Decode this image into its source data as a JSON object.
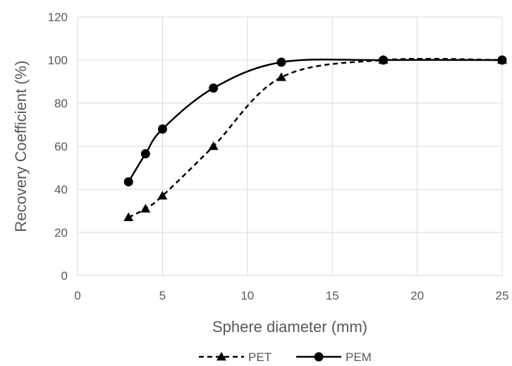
{
  "chart_data": {
    "type": "line",
    "title": "",
    "xlabel": "Sphere diameter (mm)",
    "ylabel": "Recovery Coefficient (%)",
    "xlim": [
      0,
      25
    ],
    "ylim": [
      0,
      120
    ],
    "xticks": [
      0,
      5,
      10,
      15,
      20,
      25
    ],
    "yticks": [
      0,
      20,
      40,
      60,
      80,
      100,
      120
    ],
    "grid": true,
    "legend_position": "bottom",
    "series": [
      {
        "name": "PET",
        "style": "dashed",
        "marker": "triangle",
        "color": "#000000",
        "points": [
          {
            "x": 3,
            "y": 27
          },
          {
            "x": 4,
            "y": 31
          },
          {
            "x": 5,
            "y": 37
          },
          {
            "x": 8,
            "y": 60
          },
          {
            "x": 12,
            "y": 92
          },
          {
            "x": 18,
            "y": 100
          },
          {
            "x": 25,
            "y": 100
          }
        ]
      },
      {
        "name": "PEM",
        "style": "solid",
        "marker": "circle",
        "color": "#000000",
        "points": [
          {
            "x": 3,
            "y": 43.5
          },
          {
            "x": 4,
            "y": 56.5
          },
          {
            "x": 5,
            "y": 68
          },
          {
            "x": 8,
            "y": 87
          },
          {
            "x": 12,
            "y": 99
          },
          {
            "x": 18,
            "y": 100
          },
          {
            "x": 25,
            "y": 100
          }
        ]
      }
    ]
  },
  "colors": {
    "grid": "#d9d9d9",
    "text": "#595959",
    "series": "#000000"
  }
}
